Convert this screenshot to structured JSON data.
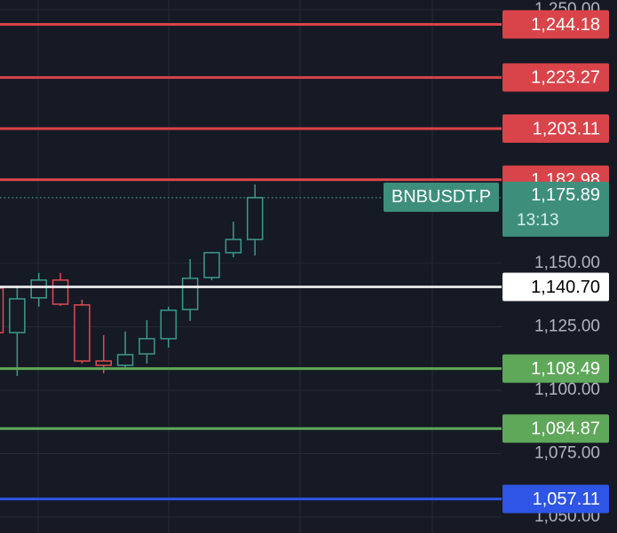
{
  "chart_data": {
    "type": "candlestick",
    "symbol": "BNBUSDT.P",
    "last_price": {
      "value": 1175.89,
      "label": "1,175.89"
    },
    "countdown": "13:13",
    "categories": [
      null,
      null,
      null,
      null,
      null,
      null,
      null,
      null,
      null,
      null,
      null,
      null,
      null
    ],
    "open": [
      1140.2,
      1122.7,
      1136.4,
      1143.4,
      1133.6,
      1111.5,
      1109.8,
      1114.3,
      1120.3,
      1131.8,
      1144.4,
      1154.2,
      1159.4
    ],
    "high": [
      1141.0,
      1140.9,
      1146.2,
      1146.2,
      1135.7,
      1121.7,
      1123.1,
      1127.6,
      1132.9,
      1151.7,
      1154.5,
      1166.4,
      1181.1
    ],
    "low": [
      1121.0,
      1105.6,
      1132.9,
      1133.2,
      1110.5,
      1106.6,
      1108.7,
      1110.5,
      1116.8,
      1127.3,
      1143.4,
      1152.4,
      1153.1
    ],
    "close": [
      1122.7,
      1136.0,
      1143.4,
      1133.9,
      1111.5,
      1109.8,
      1114.0,
      1120.3,
      1131.5,
      1144.1,
      1154.2,
      1159.4,
      1175.89
    ],
    "up_color": "#3d9a8b",
    "down_color": "#e04a4f",
    "levels": [
      {
        "value": 1244.18,
        "label": "1,244.18",
        "color": "#d9444a"
      },
      {
        "value": 1223.27,
        "label": "1,223.27",
        "color": "#d9444a"
      },
      {
        "value": 1203.11,
        "label": "1,203.11",
        "color": "#d9444a"
      },
      {
        "value": 1182.98,
        "label": "1,182.98",
        "color": "#d9444a"
      },
      {
        "value": 1140.7,
        "label": "1,140.70",
        "color": "#ffffff"
      },
      {
        "value": 1108.49,
        "label": "1,108.49",
        "color": "#5fa85a"
      },
      {
        "value": 1084.87,
        "label": "1,084.87",
        "color": "#5fa85a"
      },
      {
        "value": 1057.11,
        "label": "1,057.11",
        "color": "#2f55e6"
      }
    ],
    "ylim": [
      1043.7,
      1253.8
    ],
    "yticks": [
      {
        "value": 1250,
        "label": "1,250.00"
      },
      {
        "value": 1150,
        "label": "1,150.00"
      },
      {
        "value": 1125,
        "label": "1,125.00"
      },
      {
        "value": 1100,
        "label": "1,100.00"
      },
      {
        "value": 1075,
        "label": "1,075.00"
      },
      {
        "value": 1050,
        "label": "1,050.00"
      }
    ],
    "grid": true
  }
}
